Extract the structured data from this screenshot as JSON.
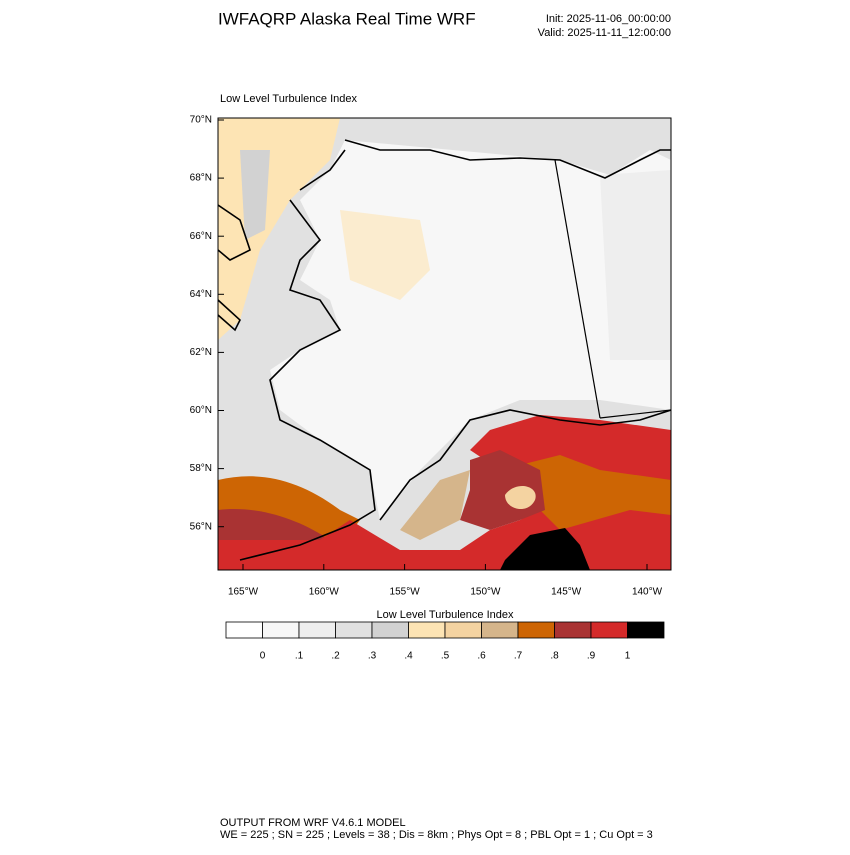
{
  "header": {
    "title": "IWFAQRP Alaska Real Time WRF",
    "init": "Init: 2025-11-06_00:00:00",
    "valid": "Valid: 2025-11-11_12:00:00"
  },
  "map": {
    "title": "Low Level Turbulence Index",
    "lat_labels": [
      "70°N",
      "68°N",
      "66°N",
      "64°N",
      "62°N",
      "60°N",
      "58°N",
      "56°N"
    ],
    "lon_labels": [
      "165°W",
      "160°W",
      "155°W",
      "150°W",
      "145°W",
      "140°W"
    ]
  },
  "colorbar": {
    "title": "Low Level Turbulence Index",
    "colors": [
      "#ffffff",
      "#f7f7f7",
      "#eeeeee",
      "#e1e1e1",
      "#d2d2d2",
      "#fde4b4",
      "#f4d3a1",
      "#d5b58b",
      "#cd6504",
      "#a93333",
      "#d42a2a",
      "#000000"
    ],
    "labels": [
      "0",
      ".1",
      ".2",
      ".3",
      ".4",
      ".5",
      ".6",
      ".7",
      ".8",
      ".9",
      "1"
    ]
  },
  "footer": {
    "line1": "OUTPUT FROM WRF V4.6.1 MODEL",
    "line2": "WE = 225 ; SN = 225 ; Levels = 38 ; Dis = 8km ; Phys Opt = 8 ; PBL Opt = 1 ; Cu Opt = 3"
  }
}
